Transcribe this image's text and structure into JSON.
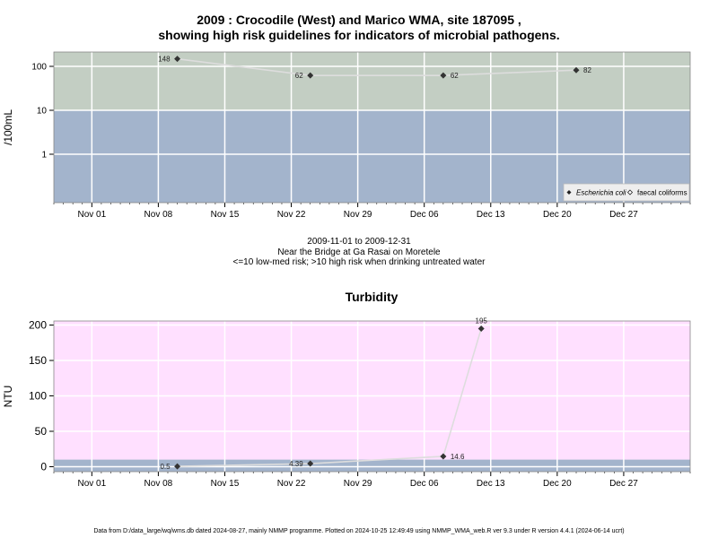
{
  "title": {
    "line1": "2009 : Crocodile (West) and Marico WMA, site 187095 ,",
    "line2": "showing high risk guidelines for indicators of microbial pathogens."
  },
  "caption": {
    "line1": "2009-11-01 to 2009-12-31",
    "line2": "Near the Bridge at Ga Rasai on Moretele",
    "line3": "<=10 low-med risk; >10 high risk when drinking untreated water"
  },
  "footer": "Data from D:/data_large/wq/wms.db dated 2024-08-27, mainly NMMP programme. Plotted on 2024-10-25 12:49:49 using NMMP_WMA_web.R ver 9.3 under R version 4.4.1 (2024-06-14 ucrt)",
  "colors": {
    "high_risk": "#c3cec3",
    "low_risk": "#a3b4cc",
    "turbidity_bg": "#ffe0ff",
    "line": "#dddddd",
    "point": "#333333"
  },
  "chart_data": [
    {
      "type": "line",
      "title": "",
      "xlabel": "",
      "ylabel": "/100mL",
      "y_scale": "log",
      "x_ticks": [
        "Nov 01",
        "Nov 08",
        "Nov 15",
        "Nov 22",
        "Nov 29",
        "Dec 06",
        "Dec 13",
        "Dec 20",
        "Dec 27"
      ],
      "y_ticks": [
        "1",
        "10",
        "100"
      ],
      "threshold": 10,
      "grid": true,
      "legend_position": "bottom-right",
      "series": [
        {
          "name": "Escherichia coli",
          "marker": "filled-diamond",
          "points": [
            {
              "date": "2009-11-10",
              "value": 148,
              "label": "148"
            },
            {
              "date": "2009-11-24",
              "value": 62,
              "label": "62"
            },
            {
              "date": "2009-12-08",
              "value": 62,
              "label": "62"
            },
            {
              "date": "2009-12-22",
              "value": 82,
              "label": "82"
            }
          ]
        },
        {
          "name": "faecal coliforms",
          "marker": "open-diamond",
          "points": []
        }
      ]
    },
    {
      "type": "line",
      "title": "Turbidity",
      "xlabel": "",
      "ylabel": "NTU",
      "y_scale": "linear",
      "ylim": [
        0,
        200
      ],
      "x_ticks": [
        "Nov 01",
        "Nov 08",
        "Nov 15",
        "Nov 22",
        "Nov 29",
        "Dec 06",
        "Dec 13",
        "Dec 20",
        "Dec 27"
      ],
      "y_ticks": [
        "0",
        "50",
        "100",
        "150",
        "200"
      ],
      "threshold": 10,
      "grid": true,
      "series": [
        {
          "name": "",
          "marker": "filled-diamond",
          "points": [
            {
              "date": "2009-11-10",
              "value": 0.5,
              "label": "0.5"
            },
            {
              "date": "2009-11-24",
              "value": 4.39,
              "label": "4.39"
            },
            {
              "date": "2009-12-08",
              "value": 14.6,
              "label": "14.6"
            },
            {
              "date": "2009-12-12",
              "value": 195,
              "label": "195"
            }
          ]
        }
      ]
    }
  ]
}
